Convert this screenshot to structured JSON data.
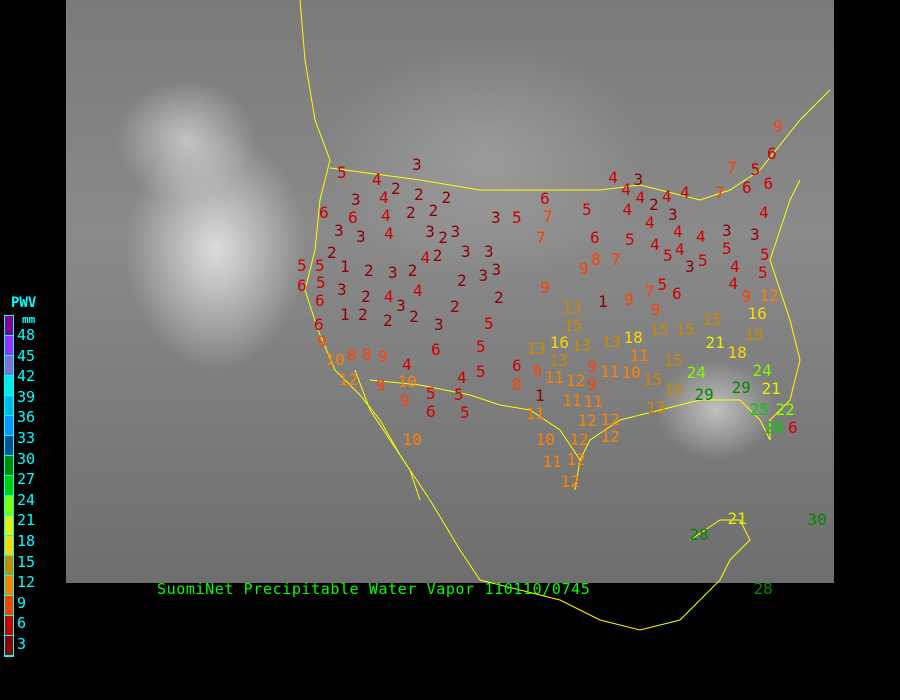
{
  "title": "SuomiNet Precipitable Water Vapor 110110/0745",
  "legend": {
    "title": "PWV",
    "unit": "mm",
    "labels": [
      "48",
      "45",
      "42",
      "39",
      "36",
      "33",
      "30",
      "27",
      "24",
      "21",
      "18",
      "15",
      "12",
      "9",
      "6",
      "3"
    ],
    "colors": [
      "#8b008b",
      "#9a30ff",
      "#8070d0",
      "#00e8e8",
      "#00b8e8",
      "#1890ff",
      "#005090",
      "#008800",
      "#00cc00",
      "#80ff00",
      "#e8f000",
      "#ffd800",
      "#cc8800",
      "#ff8000",
      "#ff4000",
      "#d00000",
      "#900000"
    ]
  },
  "stations": [
    3,
    5,
    4,
    2,
    2,
    2,
    6,
    3,
    4,
    4,
    2,
    2,
    6,
    3,
    3,
    4,
    3,
    2,
    3,
    3,
    5,
    6,
    7,
    7,
    5,
    4,
    3,
    4,
    4,
    4,
    4,
    7,
    7,
    6,
    5,
    6,
    9,
    6,
    4,
    4,
    4,
    2,
    3,
    4,
    4,
    3,
    5,
    3,
    6,
    5,
    4,
    4,
    2,
    5,
    5,
    1,
    2,
    3,
    2,
    4,
    2,
    3,
    3,
    6,
    5,
    3,
    2,
    4,
    4,
    3,
    2,
    3,
    3,
    6,
    1,
    2,
    2,
    2,
    3,
    2,
    5,
    2,
    9,
    9,
    8,
    7,
    5,
    3,
    5,
    4,
    4,
    5,
    5,
    7,
    5,
    6,
    9,
    9,
    1,
    13,
    15,
    13,
    13,
    16,
    13,
    13,
    18,
    15,
    15,
    15,
    9,
    12,
    16,
    15,
    21,
    18,
    15,
    24,
    29,
    29,
    24,
    21,
    22,
    25,
    26,
    6,
    6,
    9,
    10,
    8,
    8,
    9,
    4,
    12,
    9,
    10,
    6,
    5,
    4,
    5,
    6,
    8,
    9,
    11,
    12,
    9,
    9,
    11,
    10,
    11,
    15,
    15,
    13,
    9,
    5,
    5,
    5,
    6,
    1,
    11,
    11,
    11,
    12,
    12,
    12,
    10,
    12,
    10,
    11,
    12,
    12,
    28,
    21,
    30,
    28
  ]
}
